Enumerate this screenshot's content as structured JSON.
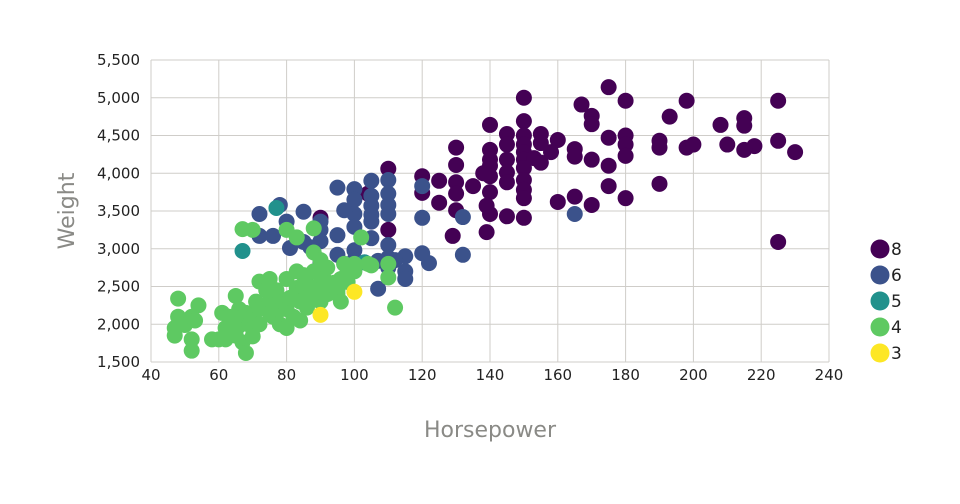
{
  "chart_data": {
    "type": "scatter",
    "xlabel": "Horsepower",
    "ylabel": "Weight",
    "xlim": [
      40,
      240
    ],
    "ylim": [
      1500,
      5500
    ],
    "xticks": [
      "40",
      "60",
      "80",
      "100",
      "120",
      "140",
      "160",
      "180",
      "200",
      "220",
      "240"
    ],
    "yticks": [
      "1,500",
      "2,000",
      "2,500",
      "3,000",
      "3,500",
      "4,000",
      "4,500",
      "5,000",
      "5,500"
    ],
    "grid": true,
    "legend_position": "right",
    "series": [
      {
        "name": "8",
        "color": "#440154",
        "points": [
          [
            150,
            5000
          ],
          [
            175,
            5140
          ],
          [
            180,
            4960
          ],
          [
            198,
            4960
          ],
          [
            225,
            4960
          ],
          [
            167,
            4910
          ],
          [
            140,
            4640
          ],
          [
            170,
            4760
          ],
          [
            170,
            4650
          ],
          [
            208,
            4640
          ],
          [
            215,
            4730
          ],
          [
            215,
            4630
          ],
          [
            193,
            4750
          ],
          [
            155,
            4520
          ],
          [
            155,
            4400
          ],
          [
            175,
            4470
          ],
          [
            180,
            4500
          ],
          [
            180,
            4380
          ],
          [
            190,
            4430
          ],
          [
            190,
            4340
          ],
          [
            225,
            4430
          ],
          [
            218,
            4360
          ],
          [
            210,
            4380
          ],
          [
            215,
            4310
          ],
          [
            230,
            4280
          ],
          [
            160,
            4440
          ],
          [
            158,
            4280
          ],
          [
            165,
            4320
          ],
          [
            165,
            4220
          ],
          [
            170,
            4180
          ],
          [
            175,
            4100
          ],
          [
            180,
            4230
          ],
          [
            198,
            4340
          ],
          [
            200,
            4380
          ],
          [
            150,
            4690
          ],
          [
            150,
            4500
          ],
          [
            150,
            4380
          ],
          [
            150,
            4280
          ],
          [
            150,
            4180
          ],
          [
            150,
            4070
          ],
          [
            150,
            3910
          ],
          [
            150,
            3780
          ],
          [
            150,
            3670
          ],
          [
            150,
            3410
          ],
          [
            145,
            4520
          ],
          [
            145,
            4380
          ],
          [
            145,
            4180
          ],
          [
            145,
            4010
          ],
          [
            145,
            3880
          ],
          [
            145,
            3430
          ],
          [
            140,
            4310
          ],
          [
            140,
            4180
          ],
          [
            140,
            4100
          ],
          [
            140,
            3960
          ],
          [
            140,
            3750
          ],
          [
            140,
            3460
          ],
          [
            130,
            4340
          ],
          [
            130,
            4110
          ],
          [
            130,
            3880
          ],
          [
            130,
            3730
          ],
          [
            130,
            3510
          ],
          [
            129,
            3170
          ],
          [
            135,
            3830
          ],
          [
            138,
            4000
          ],
          [
            139,
            3570
          ],
          [
            139,
            3220
          ],
          [
            125,
            3900
          ],
          [
            125,
            3610
          ],
          [
            120,
            3960
          ],
          [
            120,
            3740
          ],
          [
            110,
            4060
          ],
          [
            110,
            3250
          ],
          [
            104,
            3730
          ],
          [
            90,
            3410
          ],
          [
            160,
            3620
          ],
          [
            165,
            3690
          ],
          [
            170,
            3580
          ],
          [
            175,
            3830
          ],
          [
            180,
            3670
          ],
          [
            190,
            3860
          ],
          [
            225,
            3090
          ],
          [
            153,
            4200
          ],
          [
            155,
            4140
          ]
        ]
      },
      {
        "name": "6",
        "color": "#3b528b",
        "points": [
          [
            165,
            3460
          ],
          [
            132,
            3420
          ],
          [
            132,
            2920
          ],
          [
            122,
            2810
          ],
          [
            120,
            3830
          ],
          [
            120,
            3410
          ],
          [
            120,
            2940
          ],
          [
            115,
            2900
          ],
          [
            115,
            2700
          ],
          [
            115,
            2600
          ],
          [
            110,
            3910
          ],
          [
            110,
            3730
          ],
          [
            110,
            3580
          ],
          [
            110,
            3460
          ],
          [
            110,
            3050
          ],
          [
            110,
            2880
          ],
          [
            110,
            2750
          ],
          [
            105,
            3900
          ],
          [
            105,
            3700
          ],
          [
            105,
            3570
          ],
          [
            105,
            3450
          ],
          [
            105,
            3360
          ],
          [
            105,
            3140
          ],
          [
            107,
            2470
          ],
          [
            100,
            3790
          ],
          [
            100,
            3650
          ],
          [
            100,
            3460
          ],
          [
            100,
            3290
          ],
          [
            100,
            2980
          ],
          [
            100,
            2850
          ],
          [
            95,
            3810
          ],
          [
            97,
            3510
          ],
          [
            95,
            3180
          ],
          [
            95,
            2920
          ],
          [
            90,
            3360
          ],
          [
            90,
            3250
          ],
          [
            90,
            3100
          ],
          [
            90,
            2820
          ],
          [
            85,
            3490
          ],
          [
            85,
            3090
          ],
          [
            81,
            3010
          ],
          [
            80,
            3360
          ],
          [
            72,
            3170
          ],
          [
            76,
            3170
          ],
          [
            72,
            3460
          ],
          [
            78,
            3580
          ],
          [
            112,
            2850
          ],
          [
            107,
            2840
          ],
          [
            103,
            2820
          ],
          [
            97,
            2800
          ],
          [
            87,
            3020
          ]
        ]
      },
      {
        "name": "5",
        "color": "#21918c",
        "points": [
          [
            67,
            2970
          ],
          [
            77,
            3540
          ],
          [
            103,
            2820
          ]
        ]
      },
      {
        "name": "4",
        "color": "#5ec962",
        "points": [
          [
            47,
            1850
          ],
          [
            47,
            1950
          ],
          [
            48,
            2340
          ],
          [
            48,
            2100
          ],
          [
            50,
            1990
          ],
          [
            52,
            1650
          ],
          [
            52,
            1800
          ],
          [
            52,
            2100
          ],
          [
            53,
            2050
          ],
          [
            54,
            2250
          ],
          [
            58,
            1800
          ],
          [
            60,
            1800
          ],
          [
            61,
            2150
          ],
          [
            62,
            1950
          ],
          [
            62,
            1800
          ],
          [
            63,
            2100
          ],
          [
            64,
            2050
          ],
          [
            65,
            2000
          ],
          [
            65,
            2375
          ],
          [
            65,
            1850
          ],
          [
            66,
            1980
          ],
          [
            66,
            2200
          ],
          [
            67,
            2100
          ],
          [
            67,
            1760
          ],
          [
            68,
            2020
          ],
          [
            68,
            2150
          ],
          [
            68,
            1620
          ],
          [
            69,
            2000
          ],
          [
            70,
            1940
          ],
          [
            70,
            2100
          ],
          [
            70,
            1840
          ],
          [
            71,
            2300
          ],
          [
            72,
            2200
          ],
          [
            72,
            2565
          ],
          [
            72,
            2000
          ],
          [
            74,
            2450
          ],
          [
            75,
            2300
          ],
          [
            75,
            2150
          ],
          [
            75,
            2600
          ],
          [
            76,
            2250
          ],
          [
            76,
            2100
          ],
          [
            77,
            2450
          ],
          [
            78,
            2190
          ],
          [
            78,
            2000
          ],
          [
            79,
            2300
          ],
          [
            80,
            1950
          ],
          [
            80,
            2200
          ],
          [
            80,
            2600
          ],
          [
            80,
            3250
          ],
          [
            81,
            2350
          ],
          [
            82,
            2100
          ],
          [
            83,
            2700
          ],
          [
            83,
            2480
          ],
          [
            84,
            2300
          ],
          [
            84,
            2050
          ],
          [
            85,
            2500
          ],
          [
            85,
            2650
          ],
          [
            86,
            2220
          ],
          [
            86,
            2350
          ],
          [
            87,
            2500
          ],
          [
            88,
            2700
          ],
          [
            88,
            2950
          ],
          [
            88,
            2400
          ],
          [
            88,
            3270
          ],
          [
            89,
            2500
          ],
          [
            90,
            2650
          ],
          [
            90,
            2850
          ],
          [
            90,
            2300
          ],
          [
            90,
            2430
          ],
          [
            91,
            2600
          ],
          [
            92,
            2400
          ],
          [
            92,
            2750
          ],
          [
            94,
            2550
          ],
          [
            95,
            2400
          ],
          [
            95,
            2450
          ],
          [
            96,
            2300
          ],
          [
            96,
            2600
          ],
          [
            97,
            2800
          ],
          [
            98,
            2560
          ],
          [
            98,
            2690
          ],
          [
            100,
            2700
          ],
          [
            102,
            3150
          ],
          [
            104,
            2800
          ],
          [
            105,
            2780
          ],
          [
            110,
            2620
          ],
          [
            110,
            2800
          ],
          [
            112,
            2220
          ],
          [
            70,
            3250
          ],
          [
            67,
            3260
          ],
          [
            83,
            3150
          ],
          [
            100,
            2800
          ]
        ]
      },
      {
        "name": "3",
        "color": "#fde725",
        "points": [
          [
            90,
            2125
          ],
          [
            100,
            2430
          ]
        ]
      }
    ]
  }
}
